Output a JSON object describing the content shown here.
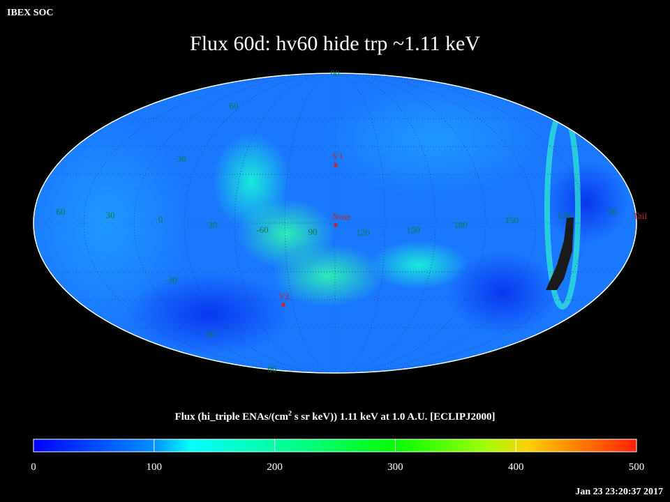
{
  "header": {
    "source": "IBEX SOC",
    "title": "Flux   60d: hv60 hide trp ~1.11 keV",
    "timestamp": "Jan 23 23:20:37 2017"
  },
  "map": {
    "grid_labels": [
      "90",
      "60",
      "30",
      "60",
      "30",
      "0",
      "30",
      "-60",
      "90",
      "120",
      "150",
      "180",
      "150",
      "120",
      "90",
      "-30",
      "60",
      "90"
    ],
    "markers": [
      "V1",
      "Nose",
      "V2",
      "Tail"
    ]
  },
  "colorbar": {
    "label_parts": [
      "Flux (hi_triple ENAs/(cm",
      "2",
      " s sr keV))  1.11 keV at 1.0 A.U. [ECLIPJ2000]"
    ],
    "lim": [
      0,
      500
    ],
    "ticks": [
      0,
      100,
      200,
      300,
      400,
      500
    ]
  }
}
